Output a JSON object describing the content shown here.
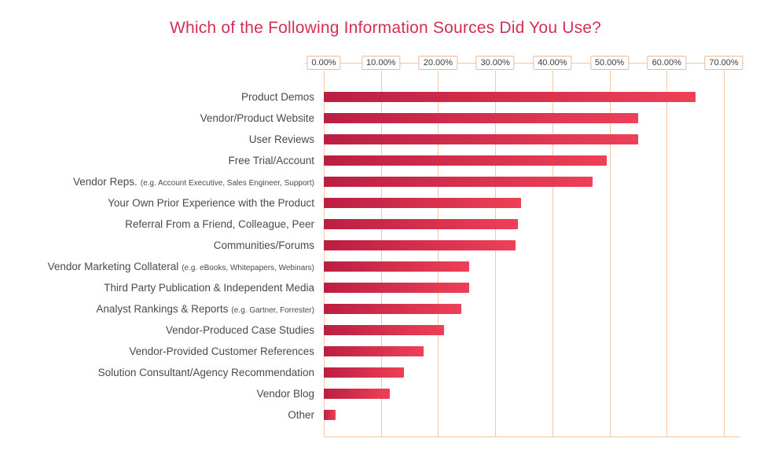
{
  "chart_data": {
    "type": "bar",
    "orientation": "horizontal",
    "title": "Which of the Following Information Sources Did You Use?",
    "xlabel": "",
    "ylabel": "",
    "xlim": [
      0,
      70
    ],
    "xmax": 70,
    "ticks": [
      "0.00%",
      "10.00%",
      "20.00%",
      "30.00%",
      "40.00%",
      "50.00%",
      "60.00%",
      "70.00%"
    ],
    "grid": "vertical-only",
    "legend": "none",
    "categories": [
      {
        "label": "Product Demos",
        "note": ""
      },
      {
        "label": "Vendor/Product Website",
        "note": ""
      },
      {
        "label": "User Reviews",
        "note": ""
      },
      {
        "label": "Free Trial/Account",
        "note": ""
      },
      {
        "label": "Vendor Reps.",
        "note": "(e.g. Account Executive, Sales Engineer, Support)"
      },
      {
        "label": "Your Own Prior Experience with the Product",
        "note": ""
      },
      {
        "label": "Referral From a Friend, Colleague, Peer",
        "note": ""
      },
      {
        "label": "Communities/Forums",
        "note": ""
      },
      {
        "label": "Vendor Marketing Collateral",
        "note": "(e.g. eBooks, Whitepapers, Webinars)"
      },
      {
        "label": "Third Party Publication & Independent Media",
        "note": ""
      },
      {
        "label": "Analyst Rankings & Reports",
        "note": "(e.g. Gartner, Forrester)"
      },
      {
        "label": "Vendor-Produced Case Studies",
        "note": ""
      },
      {
        "label": "Vendor-Provided Customer References",
        "note": ""
      },
      {
        "label": "Solution Consultant/Agency Recommendation",
        "note": ""
      },
      {
        "label": "Vendor Blog",
        "note": ""
      },
      {
        "label": "Other",
        "note": ""
      }
    ],
    "values": [
      65,
      55,
      55,
      49.5,
      47,
      34.5,
      34,
      33.5,
      25.5,
      25.5,
      24,
      21,
      17.5,
      14,
      11.5,
      2
    ],
    "colors": {
      "bar_gradient_start": "#bb1e43",
      "bar_gradient_end": "#ee4057",
      "title": "#d42e56",
      "grid": "#f6c7a2",
      "label_text": "#4a4a4a",
      "tick_text": "#3c3c3c",
      "background": "#ffffff"
    }
  }
}
